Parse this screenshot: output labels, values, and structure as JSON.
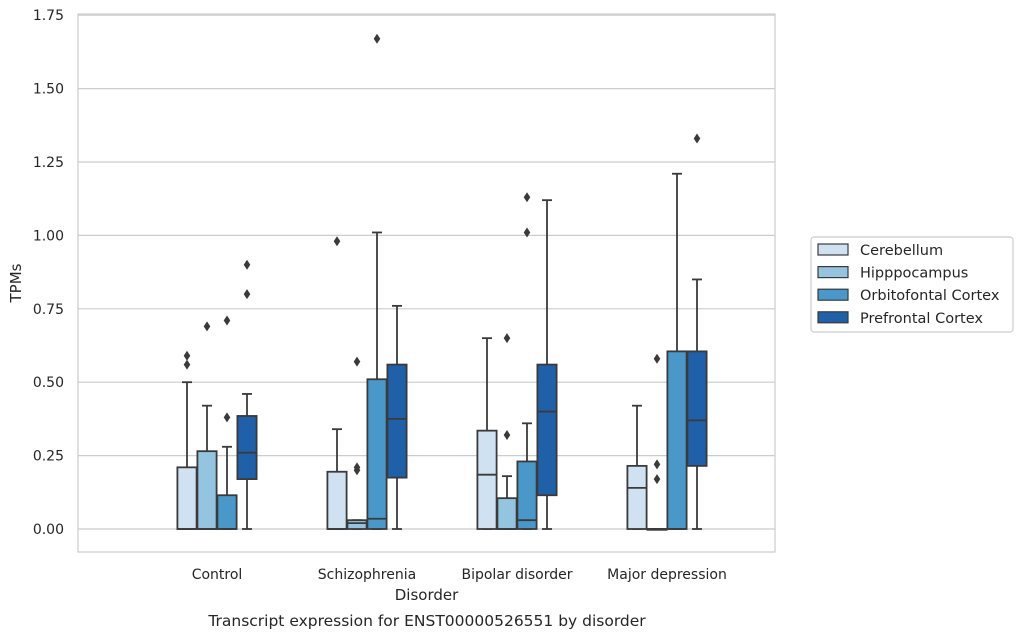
{
  "chart_data": {
    "type": "box",
    "title": "",
    "caption": "Transcript expression for ENST00000526551 by disorder",
    "xlabel": "Disorder",
    "ylabel": "TPMs",
    "ylim": [
      -0.08,
      1.75
    ],
    "yticks": [
      "0.00",
      "0.25",
      "0.50",
      "0.75",
      "1.00",
      "1.25",
      "1.50",
      "1.75"
    ],
    "categories": [
      "Control",
      "Schizophrenia",
      "Bipolar disorder",
      "Major depression"
    ],
    "grid": "horizontal",
    "legend_position": "center-right",
    "series": [
      {
        "name": "Cerebellum",
        "color": "#d0e1f2",
        "boxes": [
          {
            "min": 0,
            "q1": 0,
            "median": 0,
            "q3": 0.21,
            "max": 0.5,
            "outliers": [
              0.56,
              0.59
            ]
          },
          {
            "min": 0,
            "q1": 0,
            "median": 0,
            "q3": 0.195,
            "max": 0.34,
            "outliers": [
              0.98
            ]
          },
          {
            "min": 0,
            "q1": 0,
            "median": 0.185,
            "q3": 0.335,
            "max": 0.65,
            "outliers": []
          },
          {
            "min": 0,
            "q1": 0,
            "median": 0.14,
            "q3": 0.215,
            "max": 0.42,
            "outliers": []
          }
        ]
      },
      {
        "name": "Hipppocampus",
        "color": "#94c4df",
        "boxes": [
          {
            "min": 0,
            "q1": 0,
            "median": 0,
            "q3": 0.265,
            "max": 0.42,
            "outliers": [
              0.69
            ]
          },
          {
            "min": 0,
            "q1": 0,
            "median": 0.02,
            "q3": 0.03,
            "max": 0.03,
            "outliers": [
              0.2,
              0.21,
              0.57
            ]
          },
          {
            "min": 0,
            "q1": 0,
            "median": 0,
            "q3": 0.105,
            "max": 0.18,
            "outliers": [
              0.32,
              0.65
            ]
          },
          {
            "min": 0,
            "q1": 0,
            "median": 0,
            "q3": 0,
            "max": 0,
            "outliers": [
              0.17,
              0.22,
              0.58
            ]
          }
        ]
      },
      {
        "name": "Orbitofontal Cortex",
        "color": "#4a98c9",
        "boxes": [
          {
            "min": 0,
            "q1": 0,
            "median": 0,
            "q3": 0.115,
            "max": 0.28,
            "outliers": [
              0.38,
              0.71
            ]
          },
          {
            "min": 0,
            "q1": 0,
            "median": 0.035,
            "q3": 0.51,
            "max": 1.01,
            "outliers": [
              1.67
            ]
          },
          {
            "min": 0,
            "q1": 0,
            "median": 0.03,
            "q3": 0.23,
            "max": 0.36,
            "outliers": [
              1.01,
              1.13
            ]
          },
          {
            "min": 0,
            "q1": 0,
            "median": 0,
            "q3": 0.605,
            "max": 1.21,
            "outliers": []
          }
        ]
      },
      {
        "name": "Prefrontal Cortex",
        "color": "#2060a8",
        "boxes": [
          {
            "min": 0,
            "q1": 0.17,
            "median": 0.26,
            "q3": 0.385,
            "max": 0.46,
            "outliers": [
              0.8,
              0.9
            ]
          },
          {
            "min": 0,
            "q1": 0.175,
            "median": 0.375,
            "q3": 0.56,
            "max": 0.76,
            "outliers": []
          },
          {
            "min": 0,
            "q1": 0.115,
            "median": 0.4,
            "q3": 0.56,
            "max": 1.12,
            "outliers": []
          },
          {
            "min": 0,
            "q1": 0.215,
            "median": 0.37,
            "q3": 0.605,
            "max": 0.85,
            "outliers": [
              1.33
            ]
          }
        ]
      }
    ]
  }
}
